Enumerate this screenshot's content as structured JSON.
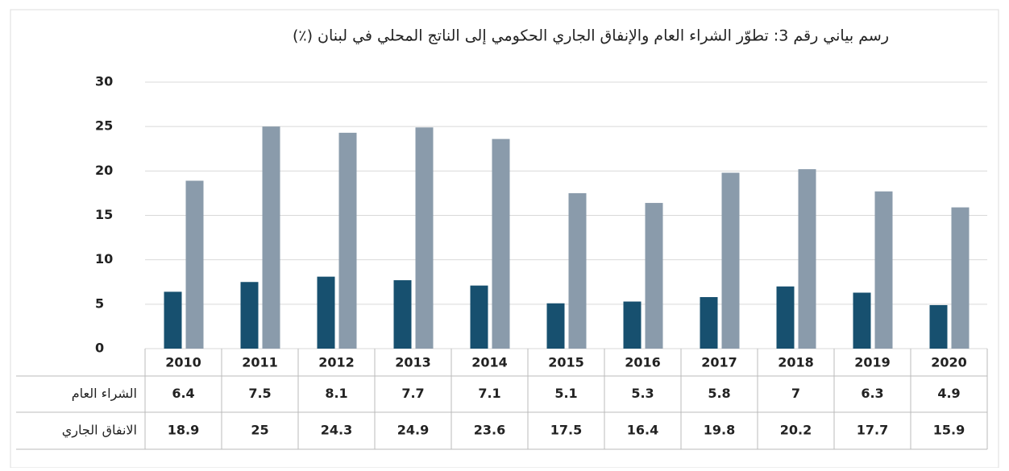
{
  "chart_data": {
    "type": "bar",
    "title": "رسم بياني رقم 3: تطوّر الشراء العام والإنفاق الجاري الحكومي إلى الناتج المحلي في لبنان (٪)",
    "categories": [
      "2010",
      "2011",
      "2012",
      "2013",
      "2014",
      "2015",
      "2016",
      "2017",
      "2018",
      "2019",
      "2020"
    ],
    "series": [
      {
        "name": "الشراء العام",
        "color": "#17506f",
        "values": [
          6.4,
          7.5,
          8.1,
          7.7,
          7.1,
          5.1,
          5.3,
          5.8,
          7,
          6.3,
          4.9
        ]
      },
      {
        "name": "الانفاق الجاري",
        "color": "#8a9bab",
        "values": [
          18.9,
          25,
          24.3,
          24.9,
          23.6,
          17.5,
          16.4,
          19.8,
          20.2,
          17.7,
          15.9
        ]
      }
    ],
    "ylim": [
      0,
      30
    ],
    "yticks": [
      0,
      5,
      10,
      15,
      20,
      25,
      30
    ],
    "grid": true
  }
}
